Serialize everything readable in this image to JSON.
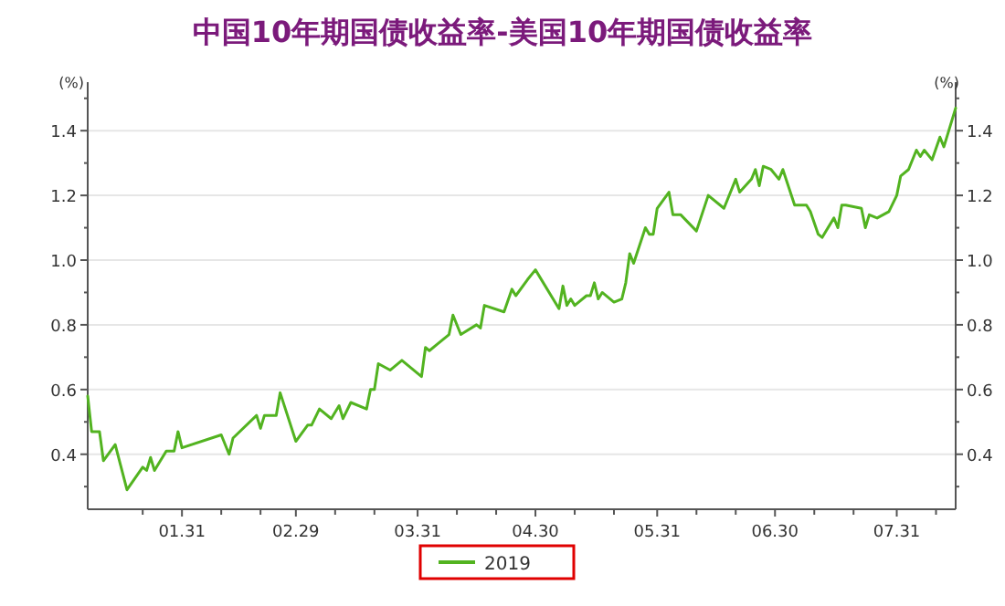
{
  "chart_data": {
    "type": "line",
    "title": "中国10年期国债收益率-美国10年期国债收益率",
    "ylabel": "(%)",
    "y2label": "(%)",
    "x": [
      "--01-07",
      "--01-08",
      "--01-10",
      "--01-11",
      "--01-14",
      "--01-17",
      "--01-21",
      "--01-22",
      "--01-23",
      "--01-24",
      "--01-27",
      "--01-29",
      "--01-30",
      "--01-31",
      "--02-10",
      "--02-12",
      "--02-13",
      "--02-19",
      "--02-20",
      "--02-21",
      "--02-24",
      "--02-25",
      "--02-29",
      "--03-03",
      "--03-04",
      "--03-06",
      "--03-09",
      "--03-11",
      "--03-12",
      "--03-14",
      "--03-18",
      "--03-19",
      "--03-20",
      "--03-21",
      "--03-24",
      "--03-27",
      "--04-01",
      "--04-02",
      "--04-03",
      "--04-05",
      "--04-08",
      "--04-09",
      "--04-11",
      "--04-15",
      "--04-16",
      "--04-17",
      "--04-22",
      "--04-24",
      "--04-25",
      "--04-28",
      "--04-30",
      "--05-06",
      "--05-07",
      "--05-08",
      "--05-09",
      "--05-10",
      "--05-13",
      "--05-14",
      "--05-15",
      "--05-16",
      "--05-17",
      "--05-20",
      "--05-22",
      "--05-23",
      "--05-24",
      "--05-25",
      "--05-28",
      "--05-29",
      "--05-30",
      "--05-31",
      "--06-03",
      "--06-04",
      "--06-06",
      "--06-10",
      "--06-13",
      "--06-17",
      "--06-20",
      "--06-21",
      "--06-24",
      "--06-25",
      "--06-26",
      "--06-27",
      "--06-29",
      "--07-01",
      "--07-02",
      "--07-05",
      "--07-08",
      "--07-09",
      "--07-11",
      "--07-12",
      "--07-15",
      "--07-16",
      "--07-17",
      "--07-18",
      "--07-22",
      "--07-23",
      "--07-24",
      "--07-26",
      "--07-29",
      "--07-31",
      "--08-01",
      "--08-03",
      "--08-05",
      "--08-06",
      "--08-07",
      "--08-09",
      "--08-11",
      "--08-12",
      "--08-15"
    ],
    "series": [
      {
        "name": "2019",
        "color": "#52b320",
        "values": [
          0.58,
          0.47,
          0.47,
          0.38,
          0.43,
          0.29,
          0.36,
          0.35,
          0.39,
          0.35,
          0.41,
          0.41,
          0.47,
          0.42,
          0.46,
          0.4,
          0.45,
          0.52,
          0.48,
          0.52,
          0.52,
          0.59,
          0.44,
          0.49,
          0.49,
          0.54,
          0.51,
          0.55,
          0.51,
          0.56,
          0.54,
          0.6,
          0.6,
          0.68,
          0.66,
          0.69,
          0.64,
          0.73,
          0.72,
          0.74,
          0.77,
          0.83,
          0.77,
          0.8,
          0.79,
          0.86,
          0.84,
          0.91,
          0.89,
          0.94,
          0.97,
          0.85,
          0.92,
          0.86,
          0.88,
          0.86,
          0.89,
          0.89,
          0.93,
          0.88,
          0.9,
          0.87,
          0.88,
          0.93,
          1.02,
          0.99,
          1.1,
          1.08,
          1.08,
          1.16,
          1.21,
          1.14,
          1.14,
          1.09,
          1.2,
          1.16,
          1.25,
          1.21,
          1.25,
          1.28,
          1.23,
          1.29,
          1.28,
          1.25,
          1.28,
          1.17,
          1.17,
          1.15,
          1.08,
          1.07,
          1.13,
          1.1,
          1.17,
          1.17,
          1.16,
          1.1,
          1.14,
          1.13,
          1.15,
          1.2,
          1.26,
          1.28,
          1.34,
          1.32,
          1.34,
          1.31,
          1.38,
          1.35,
          1.47
        ]
      }
    ],
    "xlim": [
      "--01-07",
      "--08-15"
    ],
    "xticks": [
      {
        "value": "--01-21",
        "label": null
      },
      {
        "value": "--01-31",
        "label": "01.31"
      },
      {
        "value": "--02-10",
        "label": null
      },
      {
        "value": "--02-20",
        "label": null
      },
      {
        "value": "--02-29",
        "label": "02.29"
      },
      {
        "value": "--03-10",
        "label": null
      },
      {
        "value": "--03-20",
        "label": null
      },
      {
        "value": "--03-31",
        "label": "03.31"
      },
      {
        "value": "--04-10",
        "label": null
      },
      {
        "value": "--04-20",
        "label": null
      },
      {
        "value": "--04-30",
        "label": "04.30"
      },
      {
        "value": "--05-10",
        "label": null
      },
      {
        "value": "--05-20",
        "label": null
      },
      {
        "value": "--05-31",
        "label": "05.31"
      },
      {
        "value": "--06-10",
        "label": null
      },
      {
        "value": "--06-20",
        "label": null
      },
      {
        "value": "--06-30",
        "label": "06.30"
      },
      {
        "value": "--07-10",
        "label": null
      },
      {
        "value": "--07-20",
        "label": null
      },
      {
        "value": "--07-31",
        "label": "07.31"
      },
      {
        "value": "--08-10",
        "label": null
      }
    ],
    "ylim": [
      0.23,
      1.55
    ],
    "yticks": [
      {
        "value": 0.3,
        "label": null
      },
      0.4,
      {
        "value": 0.5,
        "label": null
      },
      0.6,
      {
        "value": 0.7,
        "label": null
      },
      0.8,
      {
        "value": 0.9,
        "label": null
      },
      {
        "value": 1,
        "label": "1.0"
      },
      {
        "value": 1.1,
        "label": null
      },
      1.2,
      {
        "value": 1.3,
        "label": null
      },
      1.4,
      {
        "value": 1.5,
        "label": null
      }
    ],
    "y2lim": [
      0.23,
      1.55
    ],
    "y2ticks": [
      {
        "value": 0.3,
        "label": null
      },
      0.4,
      {
        "value": 0.5,
        "label": null
      },
      0.6,
      {
        "value": 0.7,
        "label": null
      },
      0.8,
      {
        "value": 0.9,
        "label": null
      },
      {
        "value": 1,
        "label": "1.0"
      },
      {
        "value": 1.1,
        "label": null
      },
      1.2,
      {
        "value": 1.3,
        "label": null
      },
      1.4,
      {
        "value": 1.5,
        "label": null
      }
    ],
    "grid": "y",
    "legend": "bottom",
    "marker": "none",
    "line_style": "solid"
  }
}
